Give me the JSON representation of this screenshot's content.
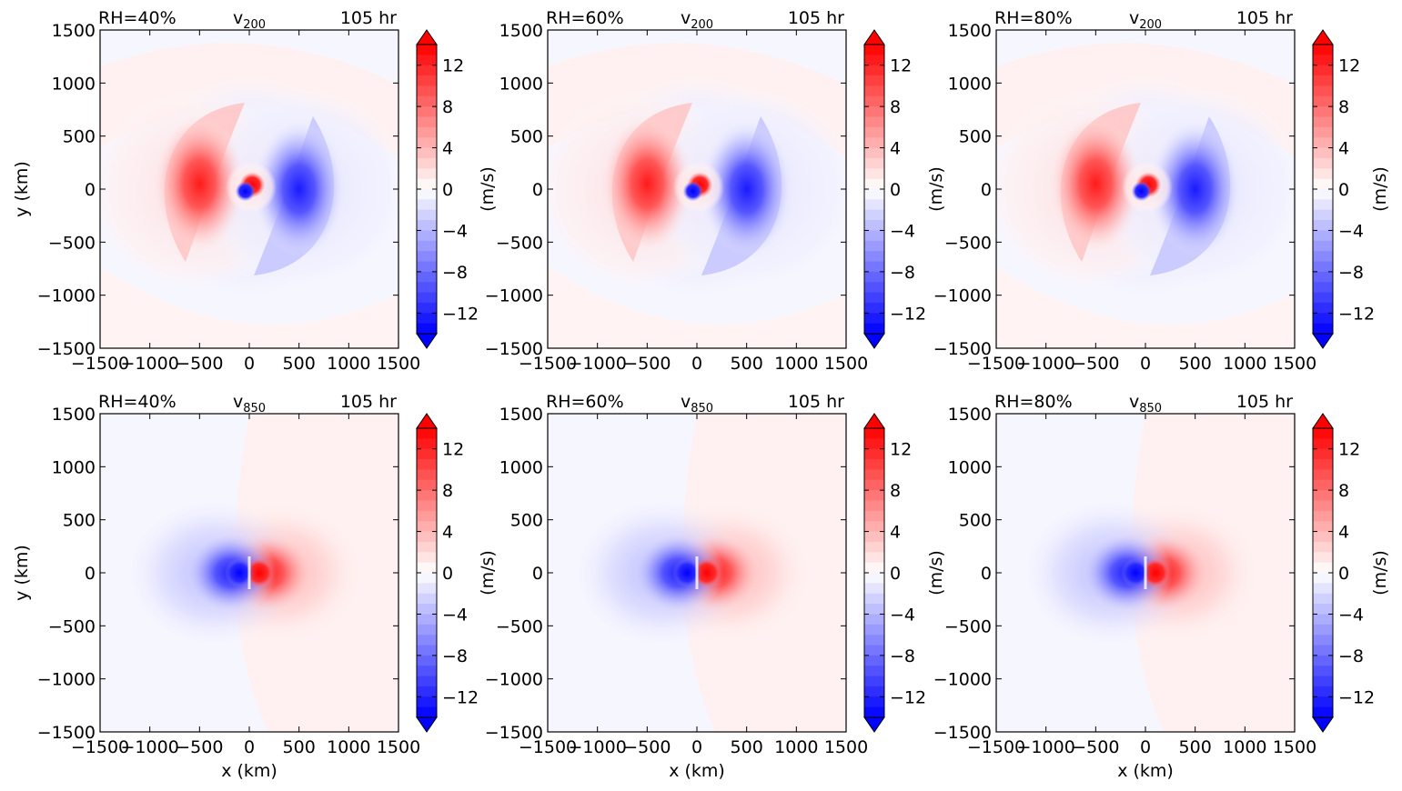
{
  "colorbar": {
    "unit_label": "(m/s)",
    "ticks": [
      12,
      8,
      4,
      0,
      -4,
      -8,
      -12
    ],
    "range": [
      -14,
      14
    ],
    "colormap": "bwr",
    "extend": "both",
    "color_min": "#0000ff",
    "color_mid": "#ffffff",
    "color_max": "#ff0000"
  },
  "chart_data": [
    {
      "type": "heatmap",
      "left_title": "RH=40%",
      "center_title": "v",
      "center_subscript": "200",
      "right_title": "105 hr",
      "ylabel": "y (km)",
      "xlabel": "",
      "xlim": [
        -1500,
        1500
      ],
      "ylim": [
        -1500,
        1500
      ],
      "xticks": [
        -1500,
        -1000,
        -500,
        0,
        500,
        1000,
        1500
      ],
      "yticks": [
        1500,
        1000,
        500,
        0,
        -500,
        -1000,
        -1500
      ],
      "features": [
        {
          "x": -500,
          "y": 50,
          "value": 12
        },
        {
          "x": 500,
          "y": 0,
          "value": -11
        },
        {
          "x": 30,
          "y": 40,
          "value": 14
        },
        {
          "x": -40,
          "y": -20,
          "value": -14
        }
      ]
    },
    {
      "type": "heatmap",
      "left_title": "RH=60%",
      "center_title": "v",
      "center_subscript": "200",
      "right_title": "105 hr",
      "ylabel": "",
      "xlabel": "",
      "xlim": [
        -1500,
        1500
      ],
      "ylim": [
        -1500,
        1500
      ],
      "xticks": [
        -1500,
        -1000,
        -500,
        0,
        500,
        1000,
        1500
      ],
      "yticks": [
        1500,
        1000,
        500,
        0,
        -500,
        -1000,
        -1500
      ],
      "features": [
        {
          "x": -500,
          "y": 50,
          "value": 12
        },
        {
          "x": 500,
          "y": 0,
          "value": -11
        },
        {
          "x": 30,
          "y": 40,
          "value": 14
        },
        {
          "x": -40,
          "y": -20,
          "value": -14
        }
      ]
    },
    {
      "type": "heatmap",
      "left_title": "RH=80%",
      "center_title": "v",
      "center_subscript": "200",
      "right_title": "105 hr",
      "ylabel": "",
      "xlabel": "",
      "xlim": [
        -1500,
        1500
      ],
      "ylim": [
        -1500,
        1500
      ],
      "xticks": [
        -1500,
        -1000,
        -500,
        0,
        500,
        1000,
        1500
      ],
      "yticks": [
        1500,
        1000,
        500,
        0,
        -500,
        -1000,
        -1500
      ],
      "features": [
        {
          "x": -500,
          "y": 50,
          "value": 12
        },
        {
          "x": 500,
          "y": 0,
          "value": -11
        },
        {
          "x": 30,
          "y": 40,
          "value": 14
        },
        {
          "x": -40,
          "y": -20,
          "value": -14
        }
      ]
    },
    {
      "type": "heatmap",
      "left_title": "RH=40%",
      "center_title": "v",
      "center_subscript": "850",
      "right_title": "105 hr",
      "ylabel": "y (km)",
      "xlabel": "x (km)",
      "xlim": [
        -1500,
        1500
      ],
      "ylim": [
        -1500,
        1500
      ],
      "xticks": [
        -1500,
        -1000,
        -500,
        0,
        500,
        1000,
        1500
      ],
      "yticks": [
        1500,
        1000,
        500,
        0,
        -500,
        -1000,
        -1500
      ],
      "features": [
        {
          "x": -100,
          "y": 0,
          "value": -15
        },
        {
          "x": 100,
          "y": 0,
          "value": 15
        },
        {
          "x": 300,
          "y": 0,
          "value": 4
        },
        {
          "x": -350,
          "y": 0,
          "value": -3
        }
      ]
    },
    {
      "type": "heatmap",
      "left_title": "RH=60%",
      "center_title": "v",
      "center_subscript": "850",
      "right_title": "105 hr",
      "ylabel": "",
      "xlabel": "x (km)",
      "xlim": [
        -1500,
        1500
      ],
      "ylim": [
        -1500,
        1500
      ],
      "xticks": [
        -1500,
        -1000,
        -500,
        0,
        500,
        1000,
        1500
      ],
      "yticks": [
        1500,
        1000,
        500,
        0,
        -500,
        -1000,
        -1500
      ],
      "features": [
        {
          "x": -100,
          "y": 0,
          "value": -15
        },
        {
          "x": 100,
          "y": 0,
          "value": 15
        },
        {
          "x": 300,
          "y": 0,
          "value": 4
        },
        {
          "x": -350,
          "y": 0,
          "value": -3
        }
      ]
    },
    {
      "type": "heatmap",
      "left_title": "RH=80%",
      "center_title": "v",
      "center_subscript": "850",
      "right_title": "105 hr",
      "ylabel": "",
      "xlabel": "x (km)",
      "xlim": [
        -1500,
        1500
      ],
      "ylim": [
        -1500,
        1500
      ],
      "xticks": [
        -1500,
        -1000,
        -500,
        0,
        500,
        1000,
        1500
      ],
      "yticks": [
        1500,
        1000,
        500,
        0,
        -500,
        -1000,
        -1500
      ],
      "features": [
        {
          "x": -100,
          "y": 0,
          "value": -15
        },
        {
          "x": 100,
          "y": 0,
          "value": 15
        },
        {
          "x": 300,
          "y": 0,
          "value": 4
        },
        {
          "x": -350,
          "y": 0,
          "value": -3
        }
      ]
    }
  ]
}
